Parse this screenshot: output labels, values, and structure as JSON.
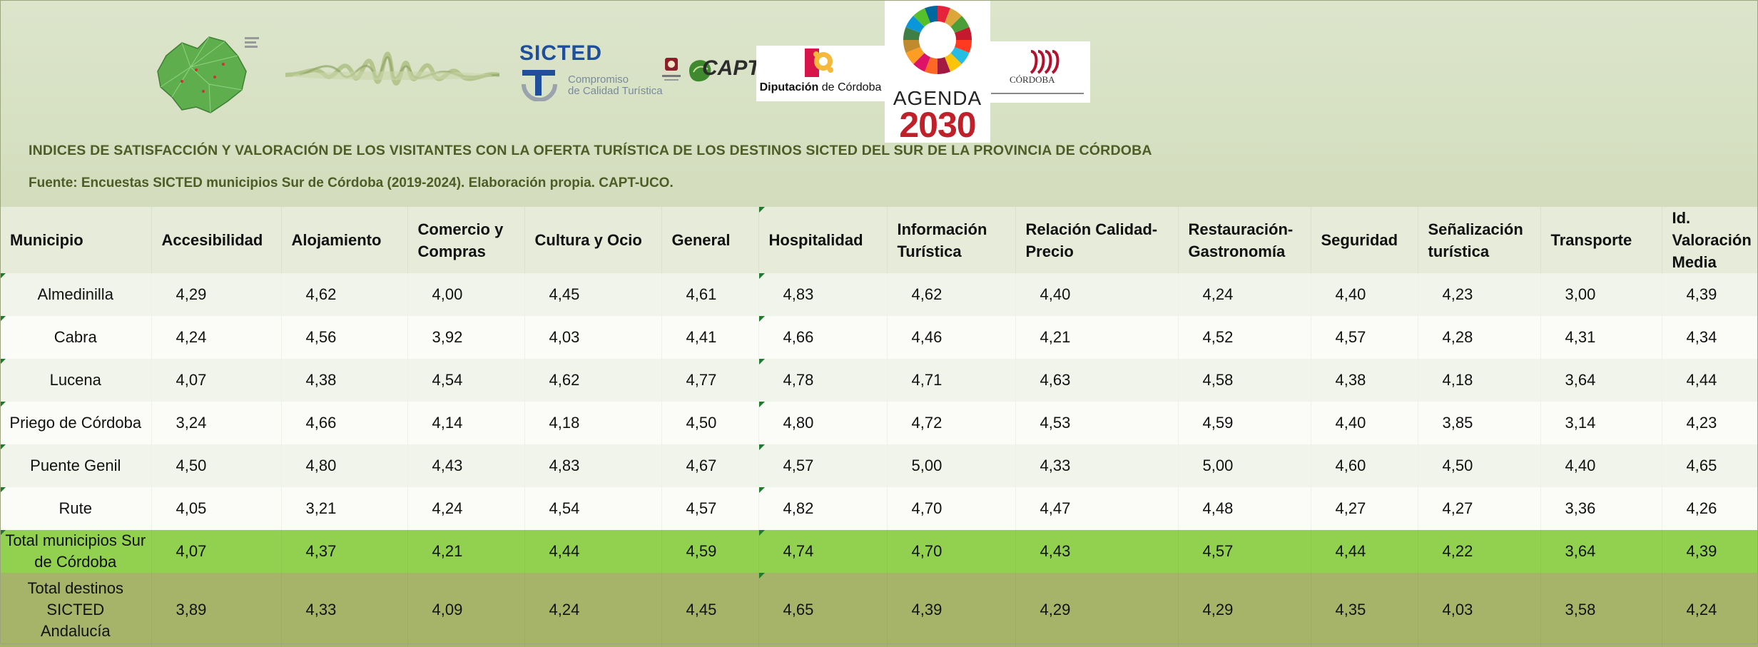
{
  "header": {
    "logos": {
      "sicted": "SICTED",
      "sicted_sub": "Compromiso\nde Calidad Turística",
      "capt": "CAPT",
      "diputacion_bold": "Diputación",
      "diputacion_rest": " de Córdoba",
      "agenda_word": "AGENDA",
      "agenda_year": "2030",
      "cordoba": "CÓRDOBA"
    },
    "title": "INDICES DE SATISFACCIÓN Y VALORACIÓN DE LOS VISITANTES CON LA OFERTA TURÍSTICA DE LOS DESTINOS SICTED DEL SUR DE LA PROVINCIA DE CÓRDOBA",
    "source": "Fuente: Encuestas SICTED municipios Sur de Córdoba (2019-2024). Elaboración propia. CAPT-UCO."
  },
  "colors": {
    "header_bg": "#d9e2c8",
    "title_text": "#4e5c26",
    "total_municipios": "#92d050",
    "total_andalucia": "#a6b46a"
  },
  "table": {
    "columns": [
      "Municipio",
      "Accesibilidad",
      "Alojamiento",
      "Comercio y Compras",
      "Cultura y Ocio",
      "General",
      "Hospitalidad",
      "Información Turística",
      "Relación Calidad-Precio",
      "Restauración-Gastronomía",
      "Seguridad",
      "Señalización turística",
      "Transporte",
      "Id. Valoración Media"
    ],
    "rows": [
      {
        "name": "Almedinilla",
        "values": [
          "4,29",
          "4,62",
          "4,00",
          "4,45",
          "4,61",
          "4,83",
          "4,62",
          "4,40",
          "4,24",
          "4,40",
          "4,23",
          "3,00",
          "4,39"
        ]
      },
      {
        "name": "Cabra",
        "values": [
          "4,24",
          "4,56",
          "3,92",
          "4,03",
          "4,41",
          "4,66",
          "4,46",
          "4,21",
          "4,52",
          "4,57",
          "4,28",
          "4,31",
          "4,34"
        ]
      },
      {
        "name": "Lucena",
        "values": [
          "4,07",
          "4,38",
          "4,54",
          "4,62",
          "4,77",
          "4,78",
          "4,71",
          "4,63",
          "4,58",
          "4,38",
          "4,18",
          "3,64",
          "4,44"
        ]
      },
      {
        "name": "Priego de Córdoba",
        "values": [
          "3,24",
          "4,66",
          "4,14",
          "4,18",
          "4,50",
          "4,80",
          "4,72",
          "4,53",
          "4,59",
          "4,40",
          "3,85",
          "3,14",
          "4,23"
        ]
      },
      {
        "name": "Puente Genil",
        "values": [
          "4,50",
          "4,80",
          "4,43",
          "4,83",
          "4,67",
          "4,57",
          "5,00",
          "4,33",
          "5,00",
          "4,60",
          "4,50",
          "4,40",
          "4,65"
        ]
      },
      {
        "name": "Rute",
        "values": [
          "4,05",
          "3,21",
          "4,24",
          "4,54",
          "4,57",
          "4,82",
          "4,70",
          "4,47",
          "4,48",
          "4,27",
          "4,27",
          "3,36",
          "4,26"
        ]
      }
    ],
    "totals": [
      {
        "name": "Total municipios Sur de Córdoba",
        "values": [
          "4,07",
          "4,37",
          "4,21",
          "4,44",
          "4,59",
          "4,74",
          "4,70",
          "4,43",
          "4,57",
          "4,44",
          "4,22",
          "3,64",
          "4,39"
        ]
      },
      {
        "name": "Total destinos SICTED Andalucía",
        "values": [
          "3,89",
          "4,33",
          "4,09",
          "4,24",
          "4,45",
          "4,65",
          "4,39",
          "4,29",
          "4,29",
          "4,35",
          "4,03",
          "3,58",
          "4,24"
        ]
      }
    ]
  }
}
